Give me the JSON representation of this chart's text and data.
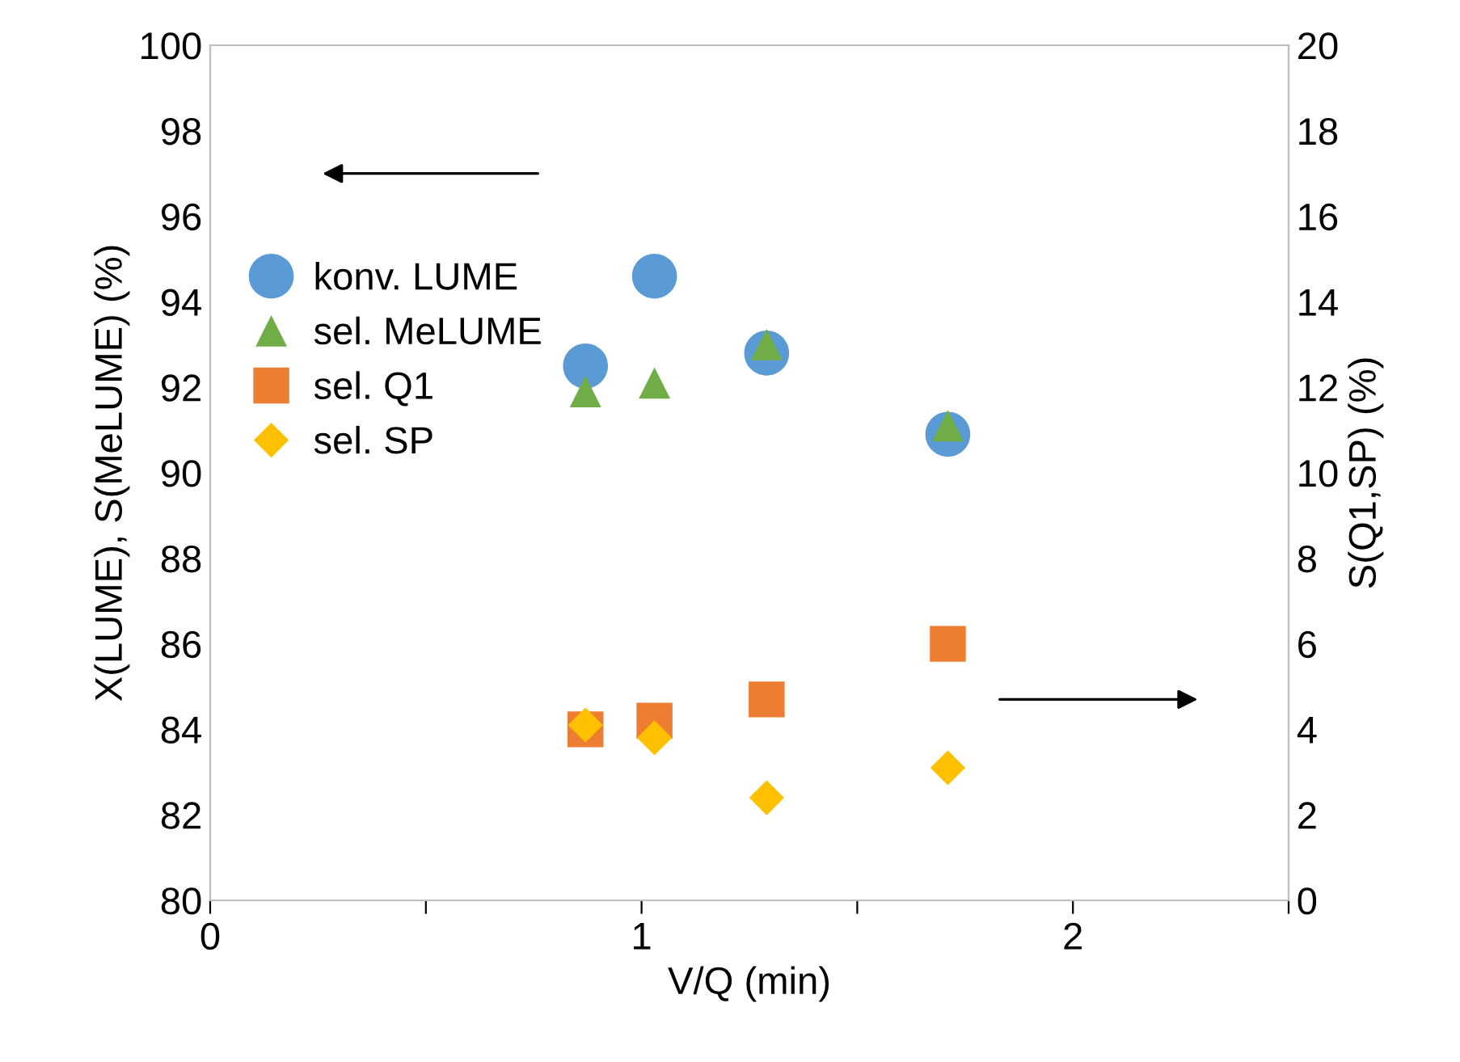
{
  "chart_data": {
    "type": "scatter",
    "xlabel": "V/Q (min)",
    "ylabel": "X(LUME), S(MeLUME) (%)",
    "y2label": "S(Q1,SP) (%)",
    "xlim": [
      0,
      2.5
    ],
    "xticks": [
      0,
      {
        "value": 0.5,
        "label": null
      },
      1,
      {
        "value": 1.5,
        "label": null
      },
      2,
      {
        "value": 2.5,
        "label": null
      }
    ],
    "ylim": [
      80,
      100
    ],
    "yticks": [
      80,
      82,
      84,
      86,
      88,
      90,
      92,
      94,
      96,
      98,
      100
    ],
    "y2lim": [
      0,
      20
    ],
    "y2ticks": [
      0,
      2,
      4,
      6,
      8,
      10,
      12,
      14,
      16,
      18,
      20
    ],
    "grid": false,
    "legend": "left",
    "series": [
      {
        "name": "konv. LUME",
        "color": "#5b9bd5",
        "marker": "circle",
        "x": [
          0.87,
          1.03,
          1.29,
          1.71
        ],
        "values": [
          92.5,
          94.6,
          92.8,
          90.9
        ]
      },
      {
        "name": "sel. MeLUME",
        "color": "#70ad47",
        "marker": "triangle",
        "x": [
          0.87,
          1.03,
          1.29,
          1.71
        ],
        "values": [
          91.9,
          92.1,
          93.0,
          91.1
        ]
      },
      {
        "name": "sel. Q1",
        "color": "#ed7d31",
        "marker": "square",
        "axis": "y2",
        "x": [
          0.87,
          1.03,
          1.29,
          1.71
        ],
        "values": [
          4.0,
          4.2,
          4.7,
          6.0
        ]
      },
      {
        "name": "sel. SP",
        "color": "#ffc000",
        "marker": "diamond",
        "axis": "y2",
        "x": [
          0.87,
          1.03,
          1.29,
          1.71
        ],
        "values": [
          4.1,
          3.8,
          2.4,
          3.1
        ]
      }
    ]
  }
}
